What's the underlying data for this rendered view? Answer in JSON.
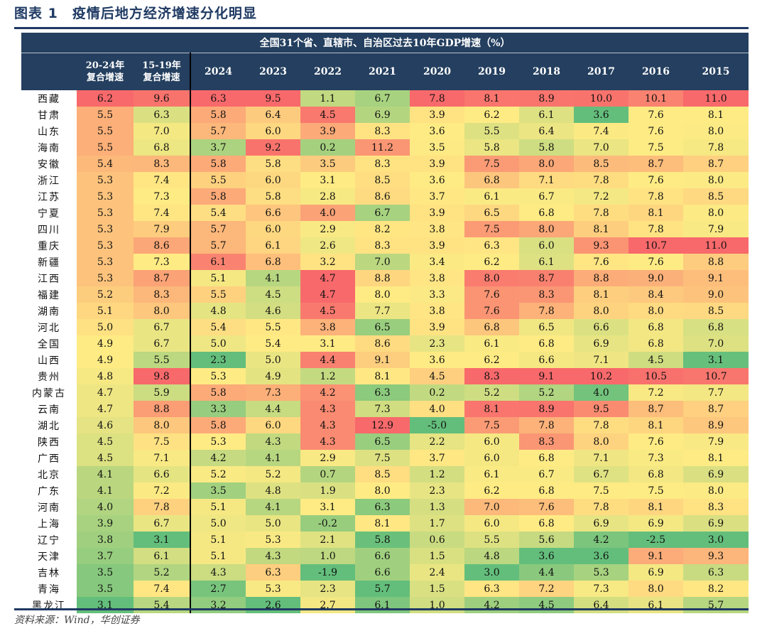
{
  "title": "图表 1　疫情后地方经济增速分化明显",
  "caption": "全国31个省、直辖市、自治区过去10年GDP增速（%）",
  "source": "资料来源：Wind，华创证券",
  "headers": [
    {
      "lines": [
        "20-24年",
        "复合增速"
      ]
    },
    {
      "lines": [
        "15-19年",
        "复合增速"
      ]
    },
    {
      "lines": [
        "2024"
      ]
    },
    {
      "lines": [
        "2023"
      ]
    },
    {
      "lines": [
        "2022"
      ]
    },
    {
      "lines": [
        "2021"
      ]
    },
    {
      "lines": [
        "2020"
      ]
    },
    {
      "lines": [
        "2019"
      ]
    },
    {
      "lines": [
        "2018"
      ]
    },
    {
      "lines": [
        "2017"
      ]
    },
    {
      "lines": [
        "2016"
      ]
    },
    {
      "lines": [
        "2015"
      ]
    }
  ],
  "colors": {
    "low": "#63be7b",
    "mid": "#ffeb84",
    "high": "#f8696b",
    "header": "#243f5f"
  },
  "rows": [
    {
      "name": "西藏",
      "values": [
        "6.2",
        "9.6",
        "6.3",
        "9.5",
        "1.1",
        "6.7",
        "7.8",
        "8.1",
        "8.9",
        "10.0",
        "10.1",
        "11.0"
      ]
    },
    {
      "name": "甘肃",
      "values": [
        "5.5",
        "6.3",
        "5.8",
        "6.4",
        "4.5",
        "6.9",
        "3.9",
        "6.2",
        "6.1",
        "3.6",
        "7.6",
        "8.1"
      ]
    },
    {
      "name": "山东",
      "values": [
        "5.5",
        "7.0",
        "5.7",
        "6.0",
        "3.9",
        "8.3",
        "3.6",
        "5.5",
        "6.4",
        "7.4",
        "7.6",
        "8.0"
      ]
    },
    {
      "name": "海南",
      "values": [
        "5.5",
        "6.8",
        "3.7",
        "9.2",
        "0.2",
        "11.2",
        "3.5",
        "5.8",
        "5.8",
        "7.0",
        "7.5",
        "7.8"
      ]
    },
    {
      "name": "安徽",
      "values": [
        "5.4",
        "8.3",
        "5.8",
        "5.8",
        "3.5",
        "8.3",
        "3.9",
        "7.5",
        "8.0",
        "8.5",
        "8.7",
        "8.7"
      ]
    },
    {
      "name": "浙江",
      "values": [
        "5.3",
        "7.4",
        "5.5",
        "6.0",
        "3.1",
        "8.5",
        "3.6",
        "6.8",
        "7.1",
        "7.8",
        "7.6",
        "8.0"
      ]
    },
    {
      "name": "江苏",
      "values": [
        "5.3",
        "7.3",
        "5.8",
        "5.8",
        "2.8",
        "8.6",
        "3.7",
        "6.1",
        "6.7",
        "7.2",
        "7.8",
        "8.5"
      ]
    },
    {
      "name": "宁夏",
      "values": [
        "5.3",
        "7.4",
        "5.4",
        "6.6",
        "4.0",
        "6.7",
        "3.9",
        "6.5",
        "6.8",
        "7.8",
        "8.1",
        "8.0"
      ]
    },
    {
      "name": "四川",
      "values": [
        "5.3",
        "7.9",
        "5.7",
        "6.0",
        "2.9",
        "8.2",
        "3.8",
        "7.5",
        "8.0",
        "8.1",
        "7.8",
        "7.9"
      ]
    },
    {
      "name": "重庆",
      "values": [
        "5.3",
        "8.6",
        "5.7",
        "6.1",
        "2.6",
        "8.3",
        "3.9",
        "6.3",
        "6.0",
        "9.3",
        "10.7",
        "11.0"
      ]
    },
    {
      "name": "新疆",
      "values": [
        "5.3",
        "7.3",
        "6.1",
        "6.8",
        "3.2",
        "7.0",
        "3.4",
        "6.2",
        "6.1",
        "7.6",
        "7.6",
        "8.8"
      ]
    },
    {
      "name": "江西",
      "values": [
        "5.3",
        "8.7",
        "5.1",
        "4.1",
        "4.7",
        "8.8",
        "3.8",
        "8.0",
        "8.7",
        "8.8",
        "9.0",
        "9.1"
      ]
    },
    {
      "name": "福建",
      "values": [
        "5.2",
        "8.3",
        "5.5",
        "4.5",
        "4.7",
        "8.0",
        "3.3",
        "7.6",
        "8.3",
        "8.1",
        "8.4",
        "9.0"
      ]
    },
    {
      "name": "湖南",
      "values": [
        "5.1",
        "8.0",
        "4.8",
        "4.6",
        "4.5",
        "7.7",
        "3.8",
        "7.6",
        "7.8",
        "8.0",
        "8.0",
        "8.5"
      ]
    },
    {
      "name": "河北",
      "values": [
        "5.0",
        "6.7",
        "5.4",
        "5.5",
        "3.8",
        "6.5",
        "3.9",
        "6.8",
        "6.5",
        "6.6",
        "6.8",
        "6.8"
      ]
    },
    {
      "name": "全国",
      "values": [
        "4.9",
        "6.7",
        "5.0",
        "5.4",
        "3.1",
        "8.6",
        "2.3",
        "6.1",
        "6.8",
        "6.9",
        "6.8",
        "7.0"
      ]
    },
    {
      "name": "山西",
      "values": [
        "4.9",
        "5.5",
        "2.3",
        "5.0",
        "4.4",
        "9.1",
        "3.6",
        "6.2",
        "6.6",
        "7.1",
        "4.5",
        "3.1"
      ]
    },
    {
      "name": "贵州",
      "values": [
        "4.8",
        "9.8",
        "5.3",
        "4.9",
        "1.2",
        "8.1",
        "4.5",
        "8.3",
        "9.1",
        "10.2",
        "10.5",
        "10.7"
      ]
    },
    {
      "name": "内蒙古",
      "values": [
        "4.7",
        "5.9",
        "5.8",
        "7.3",
        "4.2",
        "6.3",
        "0.2",
        "5.2",
        "5.2",
        "4.0",
        "7.2",
        "7.7"
      ]
    },
    {
      "name": "云南",
      "values": [
        "4.7",
        "8.8",
        "3.3",
        "4.4",
        "4.3",
        "7.3",
        "4.0",
        "8.1",
        "8.9",
        "9.5",
        "8.7",
        "8.7"
      ]
    },
    {
      "name": "湖北",
      "values": [
        "4.6",
        "8.0",
        "5.8",
        "6.0",
        "4.3",
        "12.9",
        "-5.0",
        "7.5",
        "7.8",
        "7.8",
        "8.1",
        "8.9"
      ]
    },
    {
      "name": "陕西",
      "values": [
        "4.5",
        "7.5",
        "5.3",
        "4.3",
        "4.3",
        "6.5",
        "2.2",
        "6.0",
        "8.3",
        "8.0",
        "7.6",
        "7.9"
      ]
    },
    {
      "name": "广西",
      "values": [
        "4.5",
        "7.1",
        "4.2",
        "4.1",
        "2.9",
        "7.5",
        "3.7",
        "6.0",
        "6.8",
        "7.1",
        "7.3",
        "8.1"
      ]
    },
    {
      "name": "北京",
      "values": [
        "4.1",
        "6.6",
        "5.2",
        "5.2",
        "0.7",
        "8.5",
        "1.2",
        "6.1",
        "6.7",
        "6.7",
        "6.8",
        "6.9"
      ]
    },
    {
      "name": "广东",
      "values": [
        "4.1",
        "7.2",
        "3.5",
        "4.8",
        "1.9",
        "8.0",
        "2.3",
        "6.2",
        "6.8",
        "7.5",
        "7.5",
        "8.0"
      ]
    },
    {
      "name": "河南",
      "values": [
        "4.0",
        "7.8",
        "5.1",
        "4.1",
        "3.1",
        "6.3",
        "1.3",
        "7.0",
        "7.6",
        "7.8",
        "8.1",
        "8.3"
      ]
    },
    {
      "name": "上海",
      "values": [
        "3.9",
        "6.7",
        "5.0",
        "5.0",
        "-0.2",
        "8.1",
        "1.7",
        "6.0",
        "6.8",
        "6.9",
        "6.9",
        "6.9"
      ]
    },
    {
      "name": "辽宁",
      "values": [
        "3.8",
        "3.1",
        "5.1",
        "5.3",
        "2.1",
        "5.8",
        "0.6",
        "5.5",
        "5.6",
        "4.2",
        "-2.5",
        "3.0"
      ]
    },
    {
      "name": "天津",
      "values": [
        "3.7",
        "6.1",
        "5.1",
        "4.3",
        "1.0",
        "6.6",
        "1.5",
        "4.8",
        "3.6",
        "3.6",
        "9.1",
        "9.3"
      ]
    },
    {
      "name": "吉林",
      "values": [
        "3.5",
        "5.2",
        "4.3",
        "6.3",
        "-1.9",
        "6.6",
        "2.4",
        "3.0",
        "4.4",
        "5.3",
        "6.9",
        "6.3"
      ]
    },
    {
      "name": "青海",
      "values": [
        "3.5",
        "7.4",
        "2.7",
        "5.3",
        "2.3",
        "5.7",
        "1.5",
        "6.3",
        "7.2",
        "7.3",
        "8.0",
        "8.2"
      ]
    },
    {
      "name": "黑龙江",
      "values": [
        "3.1",
        "5.4",
        "3.2",
        "2.6",
        "2.7",
        "6.1",
        "1.0",
        "4.2",
        "4.5",
        "6.4",
        "6.1",
        "5.7"
      ]
    }
  ]
}
